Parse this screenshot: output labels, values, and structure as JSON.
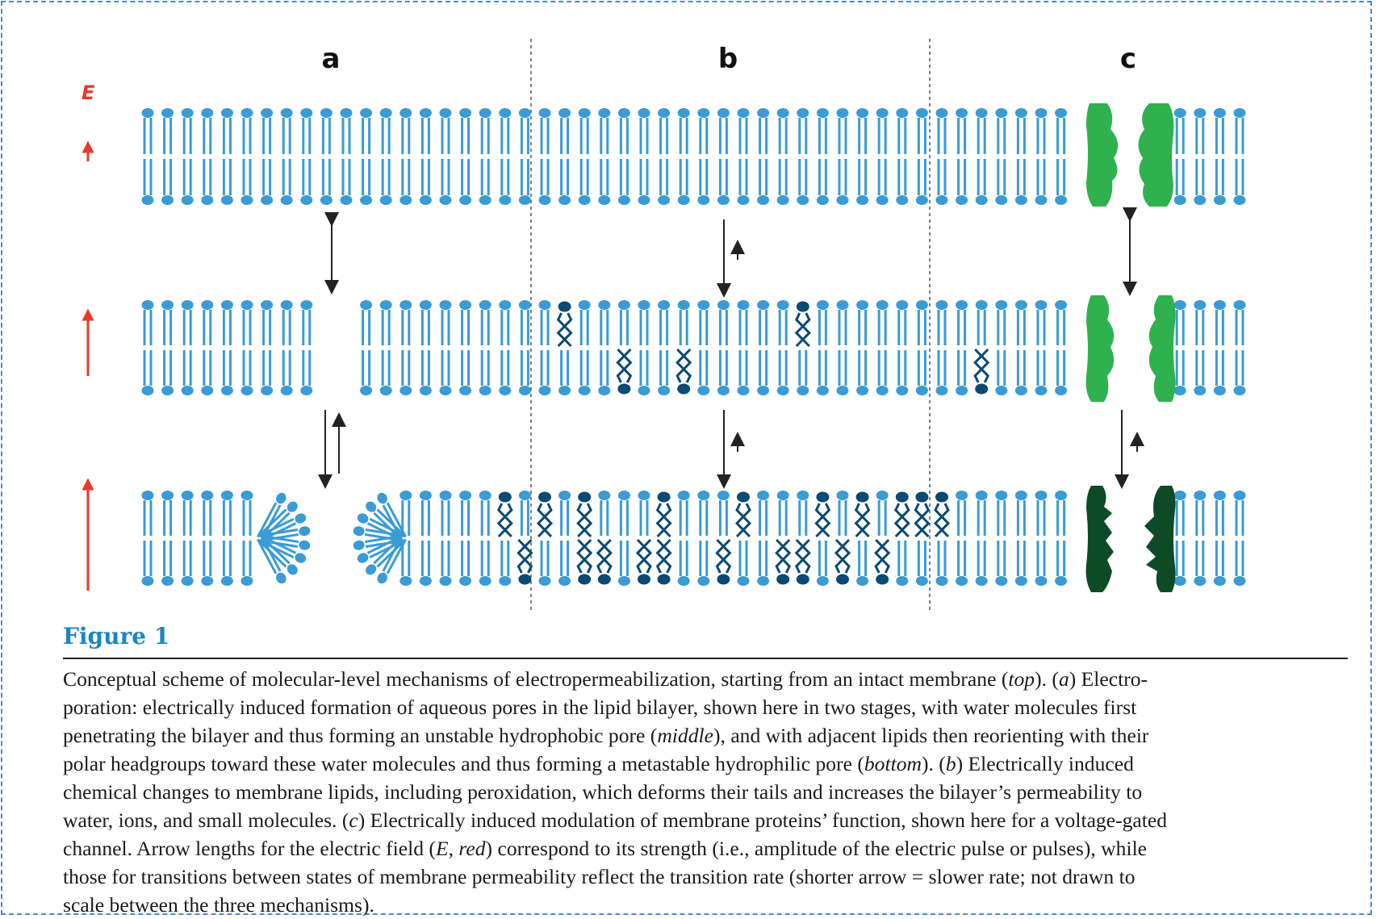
{
  "figure": {
    "panels": [
      "a",
      "b",
      "c"
    ],
    "field_label": "E",
    "colors": {
      "lipid": "#3a9bd5",
      "oxidized_lipid": "#0b4a73",
      "protein_open": "#2fb14f",
      "protein_closed": "#0d4a25",
      "field_arrow": "#e8392a",
      "transition_arrow": "#222222"
    }
  },
  "caption": {
    "title": "Figure 1",
    "lines": [
      "Conceptual scheme of molecular-level mechanisms of electropermeabilization, starting from an intact membrane (<i>top</i>). (<i>a</i>) Electro-",
      "poration: electrically induced formation of aqueous pores in the lipid bilayer, shown here in two stages, with water molecules first",
      "penetrating the bilayer and thus forming an unstable hydrophobic pore (<i>middle</i>), and with adjacent lipids then reorienting with their",
      "polar headgroups toward these water molecules and thus forming a metastable hydrophilic pore (<i>bottom</i>). (<i>b</i>) Electrically induced",
      "chemical changes to membrane lipids, including peroxidation, which deforms their tails and increases the bilayer’s permeability to",
      "water, ions, and small molecules. (<i>c</i>) Electrically induced modulation of membrane proteins’ function, shown here for a voltage-gated",
      "channel. Arrow lengths for the electric field (<i>E</i>, <i>red</i>) correspond to its strength (i.e., amplitude of the electric pulse or pulses), while",
      "those for transitions between states of membrane permeability reflect the transition rate (shorter arrow = slower rate; not drawn to",
      "scale between the three mechanisms)."
    ]
  }
}
